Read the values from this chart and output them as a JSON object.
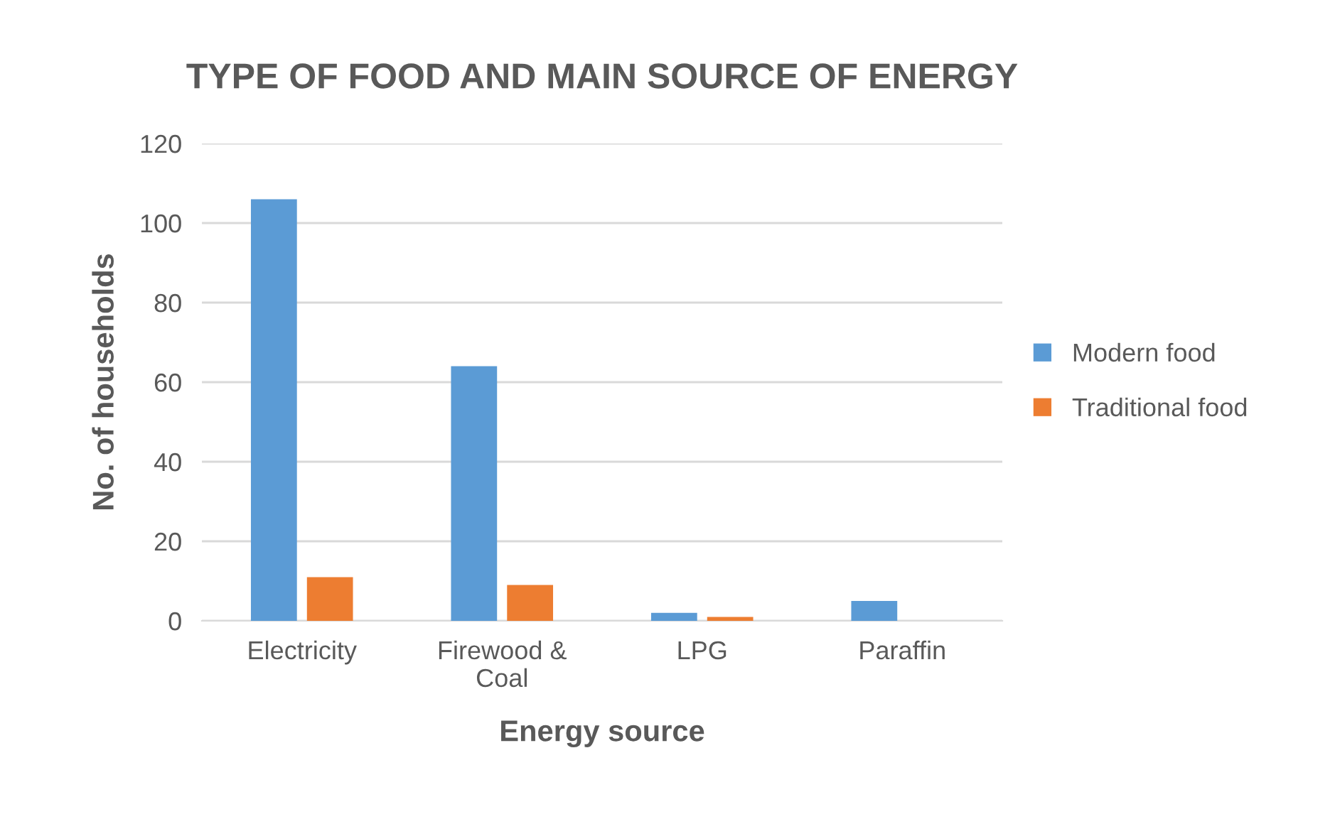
{
  "chart_data": {
    "type": "bar",
    "title": "TYPE OF FOOD AND MAIN SOURCE OF ENERGY",
    "xlabel": "Energy source",
    "ylabel": "No. of households",
    "categories": [
      "Electricity",
      "Firewood &\nCoal",
      "LPG",
      "Paraffin"
    ],
    "series": [
      {
        "name": "Modern food",
        "color": "#5b9bd5",
        "values": [
          106,
          64,
          2,
          5
        ]
      },
      {
        "name": "Traditional food",
        "color": "#ed7d31",
        "values": [
          11,
          9,
          1,
          0
        ]
      }
    ],
    "ylim": [
      0,
      120
    ],
    "yticks": [
      0,
      20,
      40,
      60,
      80,
      100,
      120
    ],
    "grid": "y",
    "legend": "right"
  }
}
